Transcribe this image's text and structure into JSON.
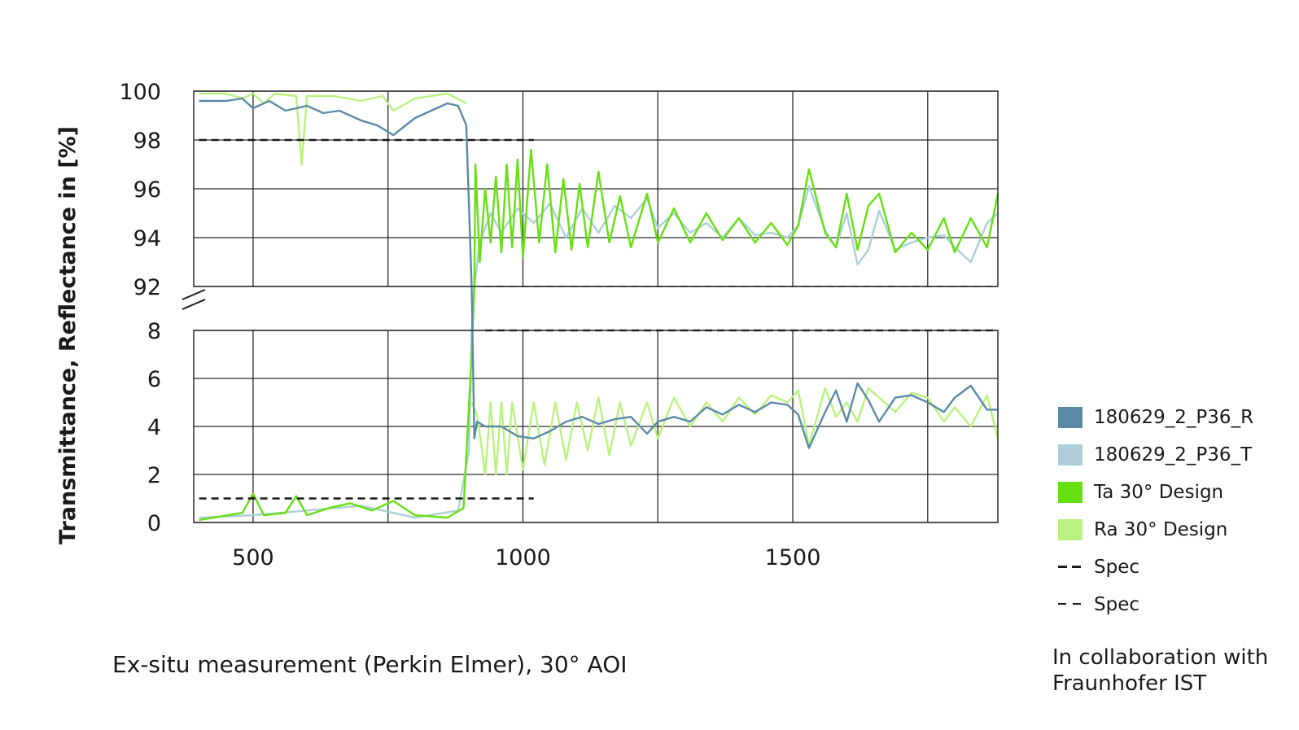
{
  "chart_data": {
    "type": "line",
    "ylabel": "Transmittance, Reflectance in [%]",
    "xlabel": "",
    "xlim": [
      390,
      1880
    ],
    "x_ticks": [
      500,
      1000,
      1500
    ],
    "grid_x": [
      500,
      750,
      1000,
      1250,
      1500,
      1750
    ],
    "upper_panel": {
      "ylim": [
        92,
        100
      ],
      "ticks": [
        100,
        98,
        96,
        94,
        92
      ]
    },
    "lower_panel": {
      "ylim": [
        0,
        8
      ],
      "ticks": [
        8,
        6,
        4,
        2,
        0
      ]
    },
    "axis_break": true,
    "grid": true,
    "legend_position": "right",
    "legend": [
      {
        "name": "180629_2_P36_R",
        "color": "#5b8aa6",
        "style": "solid"
      },
      {
        "name": "180629_2_P36_T",
        "color": "#aecfd9",
        "style": "solid"
      },
      {
        "name": "Ta 30° Design",
        "color": "#66e011",
        "style": "solid"
      },
      {
        "name": "Ra 30° Design",
        "color": "#b9f27e",
        "style": "solid"
      },
      {
        "name": "Spec",
        "color": "#1a1a1a",
        "style": "dashed-bold"
      },
      {
        "name": "Spec",
        "color": "#1a1a1a",
        "style": "dashed-thin"
      }
    ],
    "series": [
      {
        "name": "180629_2_P36_R",
        "panel": "mixed",
        "points": [
          [
            400,
            99.6
          ],
          [
            450,
            99.6
          ],
          [
            480,
            99.7
          ],
          [
            500,
            99.3
          ],
          [
            530,
            99.6
          ],
          [
            560,
            99.2
          ],
          [
            600,
            99.4
          ],
          [
            630,
            99.1
          ],
          [
            660,
            99.2
          ],
          [
            700,
            98.8
          ],
          [
            730,
            98.6
          ],
          [
            760,
            98.2
          ],
          [
            800,
            98.9
          ],
          [
            830,
            99.2
          ],
          [
            860,
            99.5
          ],
          [
            880,
            99.4
          ],
          [
            895,
            98.6
          ],
          [
            905,
            92
          ],
          [
            910,
            3.5
          ],
          [
            915,
            4.2
          ],
          [
            930,
            4.0
          ],
          [
            960,
            4.0
          ],
          [
            990,
            3.6
          ],
          [
            1020,
            3.5
          ],
          [
            1050,
            3.8
          ],
          [
            1080,
            4.2
          ],
          [
            1110,
            4.4
          ],
          [
            1140,
            4.1
          ],
          [
            1170,
            4.3
          ],
          [
            1200,
            4.4
          ],
          [
            1230,
            3.7
          ],
          [
            1250,
            4.2
          ],
          [
            1280,
            4.4
          ],
          [
            1310,
            4.2
          ],
          [
            1340,
            4.8
          ],
          [
            1370,
            4.5
          ],
          [
            1400,
            4.9
          ],
          [
            1430,
            4.6
          ],
          [
            1460,
            5.0
          ],
          [
            1490,
            4.9
          ],
          [
            1510,
            4.5
          ],
          [
            1530,
            3.1
          ],
          [
            1560,
            4.6
          ],
          [
            1580,
            5.5
          ],
          [
            1600,
            4.2
          ],
          [
            1620,
            5.8
          ],
          [
            1640,
            5.1
          ],
          [
            1660,
            4.2
          ],
          [
            1690,
            5.2
          ],
          [
            1720,
            5.3
          ],
          [
            1750,
            5.0
          ],
          [
            1780,
            4.6
          ],
          [
            1800,
            5.2
          ],
          [
            1830,
            5.7
          ],
          [
            1860,
            4.7
          ],
          [
            1880,
            4.7
          ]
        ]
      },
      {
        "name": "180629_2_P36_T",
        "panel": "mixed",
        "points": [
          [
            400,
            0.2
          ],
          [
            500,
            0.3
          ],
          [
            600,
            0.5
          ],
          [
            700,
            0.7
          ],
          [
            800,
            0.2
          ],
          [
            880,
            0.5
          ],
          [
            900,
            3
          ],
          [
            905,
            8
          ],
          [
            910,
            92
          ],
          [
            920,
            93.8
          ],
          [
            940,
            95
          ],
          [
            960,
            94.2
          ],
          [
            990,
            95.2
          ],
          [
            1020,
            94.6
          ],
          [
            1050,
            95.4
          ],
          [
            1080,
            94.0
          ],
          [
            1110,
            95.2
          ],
          [
            1140,
            94.2
          ],
          [
            1170,
            95.3
          ],
          [
            1200,
            94.8
          ],
          [
            1230,
            95.6
          ],
          [
            1250,
            94.4
          ],
          [
            1280,
            95.0
          ],
          [
            1310,
            94.2
          ],
          [
            1340,
            94.6
          ],
          [
            1370,
            94.0
          ],
          [
            1400,
            94.8
          ],
          [
            1430,
            94.1
          ],
          [
            1460,
            94.2
          ],
          [
            1490,
            94.0
          ],
          [
            1510,
            94.5
          ],
          [
            1530,
            96.1
          ],
          [
            1560,
            94.3
          ],
          [
            1580,
            93.6
          ],
          [
            1600,
            95.0
          ],
          [
            1620,
            92.9
          ],
          [
            1640,
            93.5
          ],
          [
            1660,
            95.1
          ],
          [
            1690,
            93.5
          ],
          [
            1720,
            93.8
          ],
          [
            1750,
            94.0
          ],
          [
            1780,
            94.1
          ],
          [
            1800,
            93.6
          ],
          [
            1830,
            93.0
          ],
          [
            1860,
            94.6
          ],
          [
            1880,
            95.0
          ]
        ]
      },
      {
        "name": "Ta 30° Design",
        "panel": "mixed",
        "points": [
          [
            400,
            0.1
          ],
          [
            480,
            0.4
          ],
          [
            500,
            1.2
          ],
          [
            520,
            0.3
          ],
          [
            560,
            0.4
          ],
          [
            580,
            1.1
          ],
          [
            600,
            0.3
          ],
          [
            640,
            0.6
          ],
          [
            680,
            0.8
          ],
          [
            720,
            0.5
          ],
          [
            760,
            0.9
          ],
          [
            800,
            0.3
          ],
          [
            860,
            0.2
          ],
          [
            890,
            0.6
          ],
          [
            905,
            7
          ],
          [
            910,
            92
          ],
          [
            912,
            97
          ],
          [
            920,
            93
          ],
          [
            930,
            96
          ],
          [
            940,
            93.8
          ],
          [
            950,
            96.5
          ],
          [
            960,
            93.4
          ],
          [
            970,
            97
          ],
          [
            980,
            93.6
          ],
          [
            990,
            97.2
          ],
          [
            1000,
            93.2
          ],
          [
            1015,
            97.6
          ],
          [
            1030,
            93.8
          ],
          [
            1045,
            97.0
          ],
          [
            1060,
            93.4
          ],
          [
            1075,
            96.4
          ],
          [
            1090,
            93.5
          ],
          [
            1105,
            96.2
          ],
          [
            1120,
            93.6
          ],
          [
            1140,
            96.7
          ],
          [
            1160,
            93.8
          ],
          [
            1180,
            95.7
          ],
          [
            1200,
            93.6
          ],
          [
            1230,
            95.8
          ],
          [
            1250,
            93.8
          ],
          [
            1280,
            95.2
          ],
          [
            1310,
            93.8
          ],
          [
            1340,
            95.0
          ],
          [
            1370,
            93.9
          ],
          [
            1400,
            94.8
          ],
          [
            1430,
            93.8
          ],
          [
            1460,
            94.6
          ],
          [
            1490,
            93.7
          ],
          [
            1510,
            94.5
          ],
          [
            1530,
            96.8
          ],
          [
            1560,
            94.2
          ],
          [
            1580,
            93.6
          ],
          [
            1600,
            95.8
          ],
          [
            1620,
            93.5
          ],
          [
            1640,
            95.3
          ],
          [
            1660,
            95.8
          ],
          [
            1690,
            93.4
          ],
          [
            1720,
            94.2
          ],
          [
            1750,
            93.5
          ],
          [
            1780,
            94.8
          ],
          [
            1800,
            93.4
          ],
          [
            1830,
            94.8
          ],
          [
            1860,
            93.6
          ],
          [
            1880,
            95.8
          ]
        ]
      },
      {
        "name": "Ra 30° Design",
        "panel": "mixed",
        "points": [
          [
            400,
            99.9
          ],
          [
            450,
            99.9
          ],
          [
            480,
            99.7
          ],
          [
            500,
            99.9
          ],
          [
            520,
            99.5
          ],
          [
            540,
            99.9
          ],
          [
            580,
            99.8
          ],
          [
            590,
            97.0
          ],
          [
            600,
            99.8
          ],
          [
            650,
            99.8
          ],
          [
            700,
            99.6
          ],
          [
            740,
            99.8
          ],
          [
            760,
            99.2
          ],
          [
            800,
            99.7
          ],
          [
            860,
            99.9
          ],
          [
            895,
            99.5
          ],
          [
            900,
            90
          ],
          [
            905,
            5
          ],
          [
            915,
            4.5
          ],
          [
            930,
            2.0
          ],
          [
            940,
            5
          ],
          [
            950,
            2.0
          ],
          [
            960,
            5
          ],
          [
            970,
            2.0
          ],
          [
            980,
            5
          ],
          [
            1000,
            2.2
          ],
          [
            1020,
            5.0
          ],
          [
            1040,
            2.4
          ],
          [
            1060,
            5.0
          ],
          [
            1080,
            2.6
          ],
          [
            1100,
            5.0
          ],
          [
            1120,
            3.0
          ],
          [
            1140,
            5.2
          ],
          [
            1160,
            2.8
          ],
          [
            1180,
            5.0
          ],
          [
            1200,
            3.2
          ],
          [
            1230,
            5.0
          ],
          [
            1250,
            3.5
          ],
          [
            1280,
            5.2
          ],
          [
            1310,
            4.0
          ],
          [
            1340,
            5.0
          ],
          [
            1370,
            4.2
          ],
          [
            1400,
            5.2
          ],
          [
            1430,
            4.5
          ],
          [
            1460,
            5.3
          ],
          [
            1490,
            5.0
          ],
          [
            1510,
            5.5
          ],
          [
            1530,
            3.2
          ],
          [
            1560,
            5.6
          ],
          [
            1580,
            4.4
          ],
          [
            1600,
            5.0
          ],
          [
            1620,
            4.2
          ],
          [
            1640,
            5.6
          ],
          [
            1660,
            5.2
          ],
          [
            1690,
            4.6
          ],
          [
            1720,
            5.4
          ],
          [
            1750,
            5.2
          ],
          [
            1780,
            4.2
          ],
          [
            1800,
            4.8
          ],
          [
            1830,
            4.0
          ],
          [
            1860,
            5.3
          ],
          [
            1880,
            3.5
          ]
        ]
      },
      {
        "name": "Spec",
        "style": "dashed-bold",
        "segments": [
          [
            [
              400,
              98
            ],
            [
              1020,
              98
            ]
          ],
          [
            [
              400,
              1
            ],
            [
              1020,
              1
            ]
          ],
          [
            [
              930,
              8
            ],
            [
              1880,
              8
            ]
          ]
        ]
      },
      {
        "name": "Spec",
        "style": "dashed-thin",
        "segments": [
          [
            [
              930,
              92
            ],
            [
              1880,
              92
            ]
          ]
        ]
      }
    ]
  },
  "footer": {
    "left_note": "Ex-situ measurement (Perkin Elmer), 30° AOI",
    "right_note_line1": "In collaboration with",
    "right_note_line2": "Fraunhofer IST"
  }
}
